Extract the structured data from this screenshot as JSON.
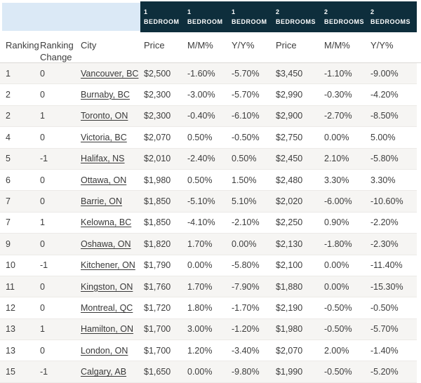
{
  "colors": {
    "navy_header": "#0e2e3c",
    "light_blue_header": "#dbe9f6",
    "row_stripe": "#f6f5f3",
    "divider": "#eceae7",
    "text": "#3d3d3d",
    "group_header_text": "#ffffff"
  },
  "chart_data": {
    "type": "table",
    "group_headers": [
      {
        "line1": "1",
        "line2": "BEDROOM"
      },
      {
        "line1": "1",
        "line2": "BEDROOM"
      },
      {
        "line1": "1",
        "line2": "BEDROOM"
      },
      {
        "line1": "2",
        "line2": "BEDROOMS"
      },
      {
        "line1": "2",
        "line2": "BEDROOMS"
      },
      {
        "line1": "2",
        "line2": "BEDROOMS"
      }
    ],
    "columns": [
      "Ranking",
      "Ranking Change",
      "City",
      "Price",
      "M/M%",
      "Y/Y%",
      "Price",
      "M/M%",
      "Y/Y%"
    ],
    "rows": [
      [
        "1",
        "0",
        "Vancouver, BC",
        "$2,500",
        "-1.60%",
        "-5.70%",
        "$3,450",
        "-1.10%",
        "-9.00%"
      ],
      [
        "2",
        "0",
        "Burnaby, BC",
        "$2,300",
        "-3.00%",
        "-5.70%",
        "$2,990",
        "-0.30%",
        "-4.20%"
      ],
      [
        "2",
        "1",
        "Toronto, ON",
        "$2,300",
        "-0.40%",
        "-6.10%",
        "$2,900",
        "-2.70%",
        "-8.50%"
      ],
      [
        "4",
        "0",
        "Victoria, BC",
        "$2,070",
        "0.50%",
        "-0.50%",
        "$2,750",
        "0.00%",
        "5.00%"
      ],
      [
        "5",
        "-1",
        "Halifax, NS",
        "$2,010",
        "-2.40%",
        "0.50%",
        "$2,450",
        "2.10%",
        "-5.80%"
      ],
      [
        "6",
        "0",
        "Ottawa, ON",
        "$1,980",
        "0.50%",
        "1.50%",
        "$2,480",
        "3.30%",
        "3.30%"
      ],
      [
        "7",
        "0",
        "Barrie, ON",
        "$1,850",
        "-5.10%",
        "5.10%",
        "$2,020",
        "-6.00%",
        "-10.60%"
      ],
      [
        "7",
        "1",
        "Kelowna, BC",
        "$1,850",
        "-4.10%",
        "-2.10%",
        "$2,250",
        "0.90%",
        "-2.20%"
      ],
      [
        "9",
        "0",
        "Oshawa, ON",
        "$1,820",
        "1.70%",
        "0.00%",
        "$2,130",
        "-1.80%",
        "-2.30%"
      ],
      [
        "10",
        "-1",
        "Kitchener, ON",
        "$1,790",
        "0.00%",
        "-5.80%",
        "$2,100",
        "0.00%",
        "-11.40%"
      ],
      [
        "11",
        "0",
        "Kingston, ON",
        "$1,760",
        "1.70%",
        "-7.90%",
        "$1,880",
        "0.00%",
        "-15.30%"
      ],
      [
        "12",
        "0",
        "Montreal, QC",
        "$1,720",
        "1.80%",
        "-1.70%",
        "$2,190",
        "-0.50%",
        "-0.50%"
      ],
      [
        "13",
        "1",
        "Hamilton, ON",
        "$1,700",
        "3.00%",
        "-1.20%",
        "$1,980",
        "-0.50%",
        "-5.70%"
      ],
      [
        "13",
        "0",
        "London, ON",
        "$1,700",
        "1.20%",
        "-3.40%",
        "$2,070",
        "2.00%",
        "-1.40%"
      ],
      [
        "15",
        "-1",
        "Calgary, AB",
        "$1,650",
        "0.00%",
        "-9.80%",
        "$1,990",
        "-0.50%",
        "-5.20%"
      ]
    ]
  }
}
